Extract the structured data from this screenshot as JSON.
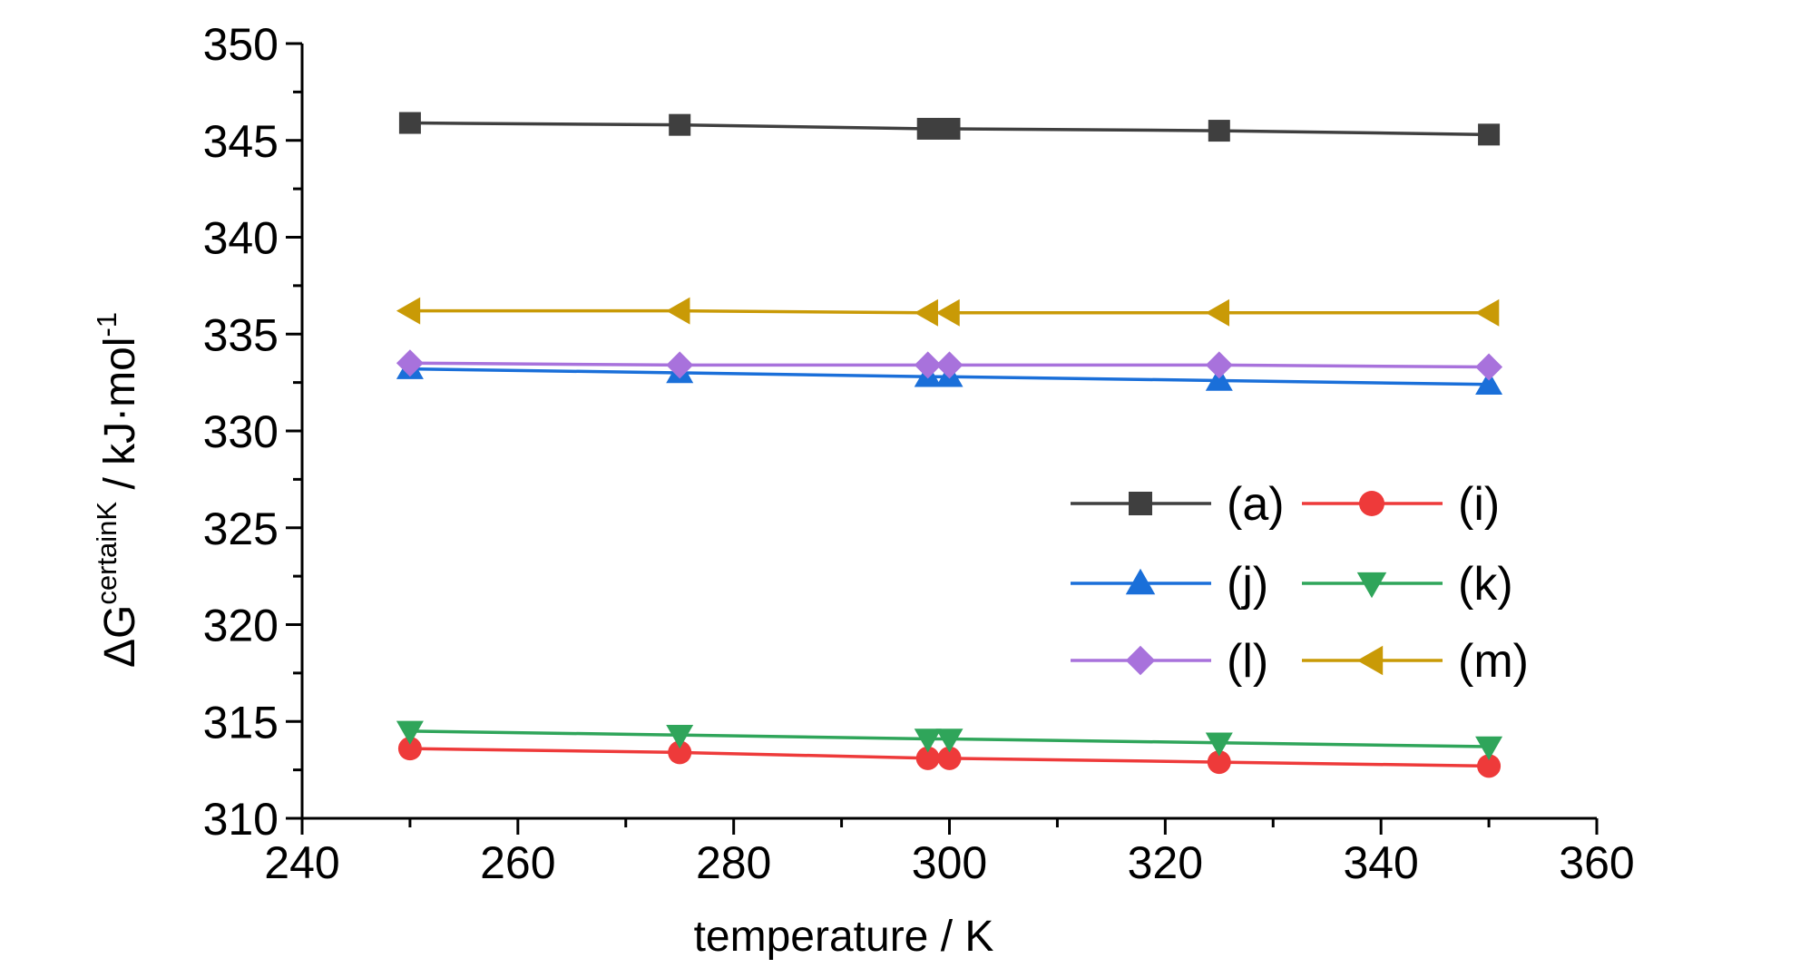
{
  "chart_data": {
    "type": "line",
    "xlabel": "temperature / K",
    "ylabel": {
      "prefix": "ΔG",
      "superscript": "certainK",
      "unit": " / kJ·mol",
      "unit_superscript": "-1"
    },
    "xlim": [
      240,
      360
    ],
    "ylim": [
      310,
      350
    ],
    "x_ticks": [
      240,
      260,
      280,
      300,
      320,
      340,
      360
    ],
    "y_ticks": [
      310,
      315,
      320,
      325,
      330,
      335,
      340,
      345,
      350
    ],
    "x": [
      250,
      275,
      298,
      300,
      325,
      350
    ],
    "series": [
      {
        "name": "(a)",
        "marker": "square",
        "color": "#3f3f3f",
        "values": [
          345.9,
          345.8,
          345.6,
          345.6,
          345.5,
          345.3
        ]
      },
      {
        "name": "(i)",
        "marker": "circle",
        "color": "#ee3a3a",
        "values": [
          313.6,
          313.4,
          313.1,
          313.1,
          312.9,
          312.7
        ]
      },
      {
        "name": "(j)",
        "marker": "triangle-up",
        "color": "#1a6fd9",
        "values": [
          333.2,
          333.0,
          332.8,
          332.8,
          332.6,
          332.4
        ]
      },
      {
        "name": "(k)",
        "marker": "triangle-down",
        "color": "#2fa55a",
        "values": [
          314.5,
          314.3,
          314.1,
          314.1,
          313.9,
          313.7
        ]
      },
      {
        "name": "(l)",
        "marker": "diamond",
        "color": "#a872dc",
        "values": [
          333.5,
          333.4,
          333.4,
          333.4,
          333.4,
          333.3
        ]
      },
      {
        "name": "(m)",
        "marker": "triangle-left",
        "color": "#c99a06",
        "values": [
          336.2,
          336.2,
          336.1,
          336.1,
          336.1,
          336.1
        ]
      }
    ],
    "grid": false,
    "legend": "center-right"
  }
}
